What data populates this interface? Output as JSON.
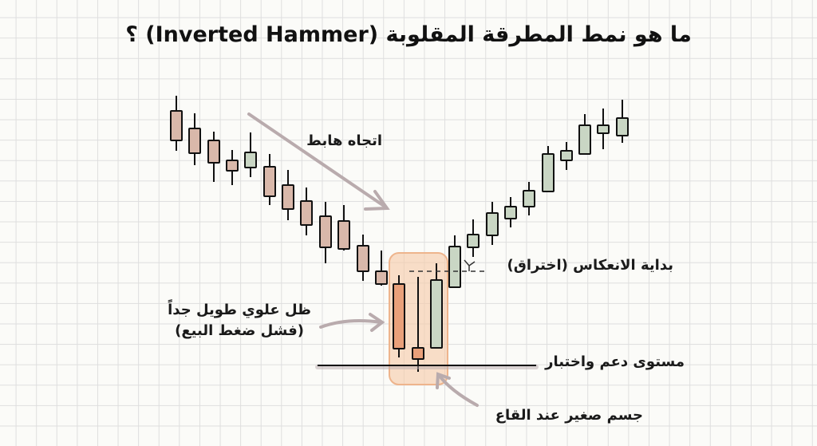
{
  "title": "ما هو نمط المطرقة المقلوبة (Inverted Hammer) ؟",
  "labels": {
    "downtrend": "اتجاه هابط",
    "reversal": "بداية الانعكاس (اختراق)",
    "upper_shadow_line1": "ظل علوي طويل جداً",
    "upper_shadow_line2": "(فشل ضغط البيع)",
    "support": "مستوى دعم واختبار",
    "small_body": "جسم صغير عند القاع"
  },
  "colors": {
    "bearish": "#d9b8aa",
    "bullish": "#c9d6c4",
    "pattern_bearish": "#e9a07a",
    "highlight": "#f6c9a6",
    "arrow": "#b9abad"
  }
}
